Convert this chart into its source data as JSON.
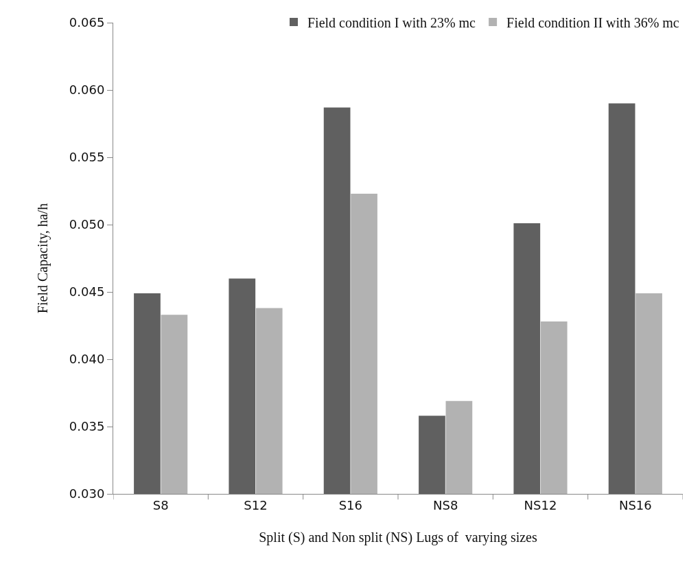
{
  "chart_data": {
    "type": "bar",
    "xlabel": "Split (S) and Non split (NS) Lugs of  varying sizes",
    "ylabel": "Field Capacity, ha/h",
    "categories": [
      "S8",
      "S12",
      "S16",
      "NS8",
      "NS12",
      "NS16"
    ],
    "series": [
      {
        "name": "Field condition I with 23% mc",
        "color": "#606060",
        "values": [
          0.0449,
          0.046,
          0.0587,
          0.0358,
          0.0501,
          0.059
        ]
      },
      {
        "name": "Field condition II with 36% mc",
        "color": "#b2b2b2",
        "values": [
          0.0433,
          0.0438,
          0.0523,
          0.0369,
          0.0428,
          0.0449
        ]
      }
    ],
    "ylim": [
      0.03,
      0.065
    ],
    "yticks": [
      {
        "value": 0.03,
        "label": "0.030"
      },
      {
        "value": 0.035,
        "label": "0.035"
      },
      {
        "value": 0.04,
        "label": "0.040"
      },
      {
        "value": 0.045,
        "label": "0.045"
      },
      {
        "value": 0.05,
        "label": "0.050"
      },
      {
        "value": 0.055,
        "label": "0.055"
      },
      {
        "value": 0.06,
        "label": "0.060"
      },
      {
        "value": 0.065,
        "label": "0.065"
      }
    ],
    "grid": false,
    "legend": "top right"
  }
}
